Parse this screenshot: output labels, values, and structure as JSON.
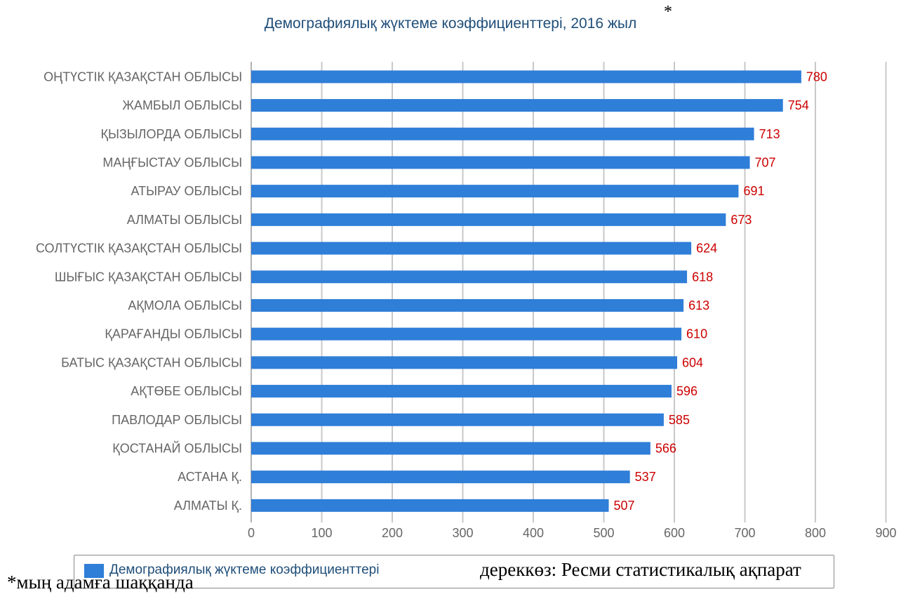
{
  "footnote": "*мың адамға шаққанда",
  "source": "дереккөз: Ресми статистикалық ақпарат",
  "title_note": "*",
  "colors": {
    "bar": "#2f7ed8",
    "value_label": "#cc0000",
    "axis_text": "#666666",
    "grid": "#c8c8c8",
    "title": "#1f4e79"
  },
  "chart_data": {
    "type": "bar",
    "orientation": "horizontal",
    "title": "Демографиялық жүктеме коэффициенттері, 2016 жыл",
    "xlabel": "",
    "ylabel": "",
    "xlim": [
      0,
      900
    ],
    "xticks": [
      0,
      100,
      200,
      300,
      400,
      500,
      600,
      700,
      800,
      900
    ],
    "grid": true,
    "legend_position": "bottom",
    "categories": [
      "ОҢТҮСТІК ҚАЗАҚСТАН ОБЛЫСЫ",
      "ЖАМБЫЛ ОБЛЫСЫ",
      "ҚЫЗЫЛОРДА ОБЛЫСЫ",
      "МАҢҒЫСТАУ ОБЛЫСЫ",
      "АТЫРАУ ОБЛЫСЫ",
      "АЛМАТЫ ОБЛЫСЫ",
      "СОЛТҮСТІК ҚАЗАҚСТАН ОБЛЫСЫ",
      "ШЫҒЫС ҚАЗАҚСТАН ОБЛЫСЫ",
      "АҚМОЛА ОБЛЫСЫ",
      "ҚАРАҒАНДЫ ОБЛЫСЫ",
      "БАТЫС ҚАЗАҚСТАН ОБЛЫСЫ",
      "АҚТӨБЕ ОБЛЫСЫ",
      "ПАВЛОДАР ОБЛЫСЫ",
      "ҚОСТАНАЙ ОБЛЫСЫ",
      "АСТАНА Қ.",
      "АЛМАТЫ Қ."
    ],
    "series": [
      {
        "name": "Демографиялық жүктеме коэффициенттері",
        "values": [
          780,
          754,
          713,
          707,
          691,
          673,
          624,
          618,
          613,
          610,
          604,
          596,
          585,
          566,
          537,
          507
        ]
      }
    ]
  }
}
